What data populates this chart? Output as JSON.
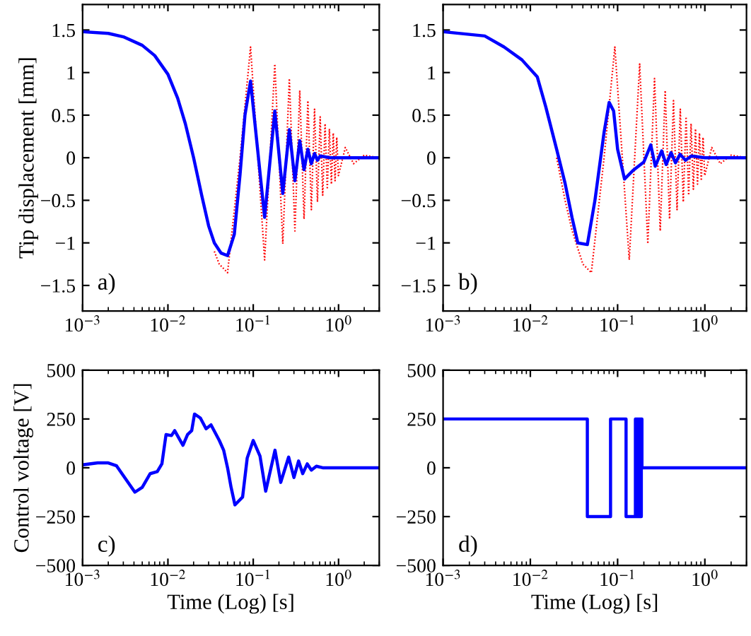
{
  "chart_data": [
    {
      "type": "line",
      "ylabel": "Tip displacement [mm]",
      "annotations": [
        "a)"
      ],
      "log": "x",
      "xlim": [
        0.001,
        3
      ],
      "ylim": [
        -1.8,
        1.8
      ],
      "xticks": [
        {
          "value": 0.001,
          "label": "10$^{−3}$"
        },
        {
          "value": 0.01,
          "label": "10$^{−2}$"
        },
        {
          "value": 0.1,
          "label": "10$^{−1}$"
        },
        {
          "value": 1,
          "label": "10$^{0}$"
        }
      ],
      "yticks": [
        {
          "value": -1.5,
          "label": "−1.5"
        },
        {
          "value": -1,
          "label": "−1"
        },
        {
          "value": -0.5,
          "label": "−0.5"
        },
        0,
        0.5,
        1,
        1.5
      ],
      "grid": false,
      "series": [
        {
          "color": "#ff0000",
          "line_style": "dotted",
          "x": [
            0.035,
            0.04,
            0.05,
            0.07,
            0.093,
            0.136,
            0.179,
            0.222,
            0.265,
            0.308,
            0.351,
            0.394,
            0.437,
            0.48,
            0.523,
            0.566,
            0.609,
            0.652,
            0.695,
            0.738,
            0.781,
            0.824,
            0.867,
            0.91,
            0.953,
            0.996,
            1.2,
            1.5,
            2.0,
            3.0
          ],
          "values": [
            -1.1,
            -1.25,
            -1.35,
            0.0,
            1.3,
            -1.2,
            1.1,
            -1.01,
            0.93,
            -0.86,
            0.79,
            -0.72,
            0.67,
            -0.61,
            0.57,
            -0.52,
            0.48,
            -0.44,
            0.4,
            -0.37,
            0.34,
            -0.31,
            0.29,
            -0.27,
            0.24,
            -0.21,
            0.12,
            -0.07,
            0.03,
            0.0
          ]
        },
        {
          "color": "#0000ff",
          "line_style": "solid",
          "x": [
            0.001,
            0.002,
            0.003,
            0.005,
            0.007,
            0.01,
            0.013,
            0.016,
            0.02,
            0.025,
            0.03,
            0.035,
            0.042,
            0.05,
            0.06,
            0.07,
            0.08,
            0.093,
            0.136,
            0.179,
            0.222,
            0.265,
            0.308,
            0.351,
            0.394,
            0.437,
            0.48,
            0.523,
            0.566,
            0.609,
            0.8,
            3.0
          ],
          "values": [
            1.48,
            1.46,
            1.42,
            1.32,
            1.2,
            0.98,
            0.7,
            0.4,
            0.0,
            -0.45,
            -0.8,
            -1.0,
            -1.12,
            -1.15,
            -0.9,
            -0.2,
            0.5,
            0.9,
            -0.7,
            0.55,
            -0.42,
            0.33,
            -0.27,
            0.2,
            -0.14,
            0.1,
            -0.07,
            0.05,
            -0.03,
            0.02,
            0.0,
            0.0
          ]
        }
      ]
    },
    {
      "type": "line",
      "annotations": [
        "b)"
      ],
      "log": "x",
      "xlim": [
        0.001,
        3
      ],
      "ylim": [
        -1.8,
        1.8
      ],
      "xticks": [
        {
          "value": 0.001,
          "label": "10$^{−3}$"
        },
        {
          "value": 0.01,
          "label": "10$^{−2}$"
        },
        {
          "value": 0.1,
          "label": "10$^{−1}$"
        },
        {
          "value": 1,
          "label": "10$^{0}$"
        }
      ],
      "yticks": [
        {
          "value": -1.5,
          "label": "−1.5"
        },
        {
          "value": -1,
          "label": "−1"
        },
        {
          "value": -0.5,
          "label": "−0.5"
        },
        0,
        0.5,
        1,
        1.5
      ],
      "grid": false,
      "series": [
        {
          "color": "#ff0000",
          "line_style": "dotted",
          "x": [
            0.02,
            0.025,
            0.03,
            0.04,
            0.05,
            0.07,
            0.093,
            0.136,
            0.179,
            0.222,
            0.265,
            0.308,
            0.351,
            0.394,
            0.437,
            0.48,
            0.523,
            0.566,
            0.609,
            0.652,
            0.695,
            0.738,
            0.781,
            0.824,
            0.867,
            0.91,
            0.953,
            0.996,
            1.2,
            1.5,
            2.0,
            3.0
          ],
          "values": [
            0.0,
            -0.5,
            -0.85,
            -1.25,
            -1.35,
            0.0,
            1.3,
            -1.2,
            1.1,
            -1.01,
            0.93,
            -0.86,
            0.79,
            -0.72,
            0.67,
            -0.61,
            0.57,
            -0.52,
            0.48,
            -0.44,
            0.4,
            -0.37,
            0.34,
            -0.31,
            0.29,
            -0.27,
            0.24,
            -0.21,
            0.12,
            -0.07,
            0.03,
            0.0
          ]
        },
        {
          "color": "#0000ff",
          "line_style": "solid",
          "x": [
            0.001,
            0.003,
            0.005,
            0.008,
            0.012,
            0.015,
            0.02,
            0.025,
            0.03,
            0.035,
            0.045,
            0.055,
            0.07,
            0.08,
            0.09,
            0.1,
            0.12,
            0.15,
            0.2,
            0.24,
            0.27,
            0.32,
            0.36,
            0.41,
            0.46,
            0.52,
            0.6,
            0.7,
            1.0,
            3.0
          ],
          "values": [
            1.48,
            1.43,
            1.3,
            1.15,
            0.95,
            0.6,
            0.1,
            -0.3,
            -0.7,
            -1.0,
            -1.02,
            -0.5,
            0.3,
            0.65,
            0.55,
            0.1,
            -0.25,
            -0.15,
            -0.05,
            0.15,
            -0.1,
            0.08,
            -0.08,
            0.06,
            -0.06,
            0.04,
            -0.03,
            0.02,
            0.0,
            0.0
          ]
        }
      ]
    },
    {
      "type": "line",
      "xlabel": "Time (Log) [s]",
      "ylabel": "Control voltage [V]",
      "annotations": [
        "c)"
      ],
      "log": "x",
      "xlim": [
        0.001,
        3
      ],
      "ylim": [
        -500,
        500
      ],
      "xticks": [
        {
          "value": 0.001,
          "label": "10$^{−3}$"
        },
        {
          "value": 0.01,
          "label": "10$^{−2}$"
        },
        {
          "value": 0.1,
          "label": "10$^{−1}$"
        },
        {
          "value": 1,
          "label": "10$^{0}$"
        }
      ],
      "yticks": [
        {
          "value": -500,
          "label": "−500"
        },
        {
          "value": -250,
          "label": "−250"
        },
        0,
        250,
        500
      ],
      "grid": false,
      "series": [
        {
          "color": "#0000ff",
          "line_style": "solid",
          "x": [
            0.001,
            0.0015,
            0.002,
            0.0025,
            0.003,
            0.0041,
            0.005,
            0.0062,
            0.0075,
            0.0085,
            0.0095,
            0.011,
            0.012,
            0.015,
            0.017,
            0.019,
            0.0205,
            0.024,
            0.028,
            0.032,
            0.04,
            0.045,
            0.05,
            0.055,
            0.061,
            0.075,
            0.085,
            0.1,
            0.12,
            0.14,
            0.18,
            0.21,
            0.26,
            0.3,
            0.34,
            0.38,
            0.43,
            0.48,
            0.55,
            0.65,
            3.0
          ],
          "values": [
            15,
            25,
            25,
            10,
            -40,
            -125,
            -100,
            -30,
            -20,
            20,
            170,
            165,
            190,
            115,
            170,
            190,
            275,
            255,
            200,
            220,
            140,
            90,
            0,
            -100,
            -190,
            -150,
            50,
            140,
            60,
            -120,
            90,
            -75,
            55,
            -50,
            35,
            -30,
            20,
            -12,
            8,
            0,
            0
          ]
        }
      ]
    },
    {
      "type": "step",
      "xlabel": "Time (Log) [s]",
      "annotations": [
        "d)"
      ],
      "log": "x",
      "xlim": [
        0.001,
        3
      ],
      "ylim": [
        -500,
        500
      ],
      "xticks": [
        {
          "value": 0.001,
          "label": "10$^{−3}$"
        },
        {
          "value": 0.01,
          "label": "10$^{−2}$"
        },
        {
          "value": 0.1,
          "label": "10$^{−1}$"
        },
        {
          "value": 1,
          "label": "10$^{0}$"
        }
      ],
      "yticks": [
        {
          "value": -500,
          "label": "−500"
        },
        {
          "value": -250,
          "label": "−250"
        },
        0,
        250,
        500
      ],
      "grid": false,
      "series": [
        {
          "color": "#0000ff",
          "line_style": "solid",
          "x": [
            0.001,
            0.045,
            0.083,
            0.125,
            0.16,
            0.165,
            0.168,
            0.172,
            0.175,
            0.178,
            0.181,
            0.184,
            0.187,
            0.19,
            3.0
          ],
          "values": [
            250,
            -250,
            250,
            -250,
            250,
            -250,
            250,
            -250,
            250,
            -250,
            250,
            -250,
            250,
            0,
            0
          ]
        }
      ]
    }
  ]
}
